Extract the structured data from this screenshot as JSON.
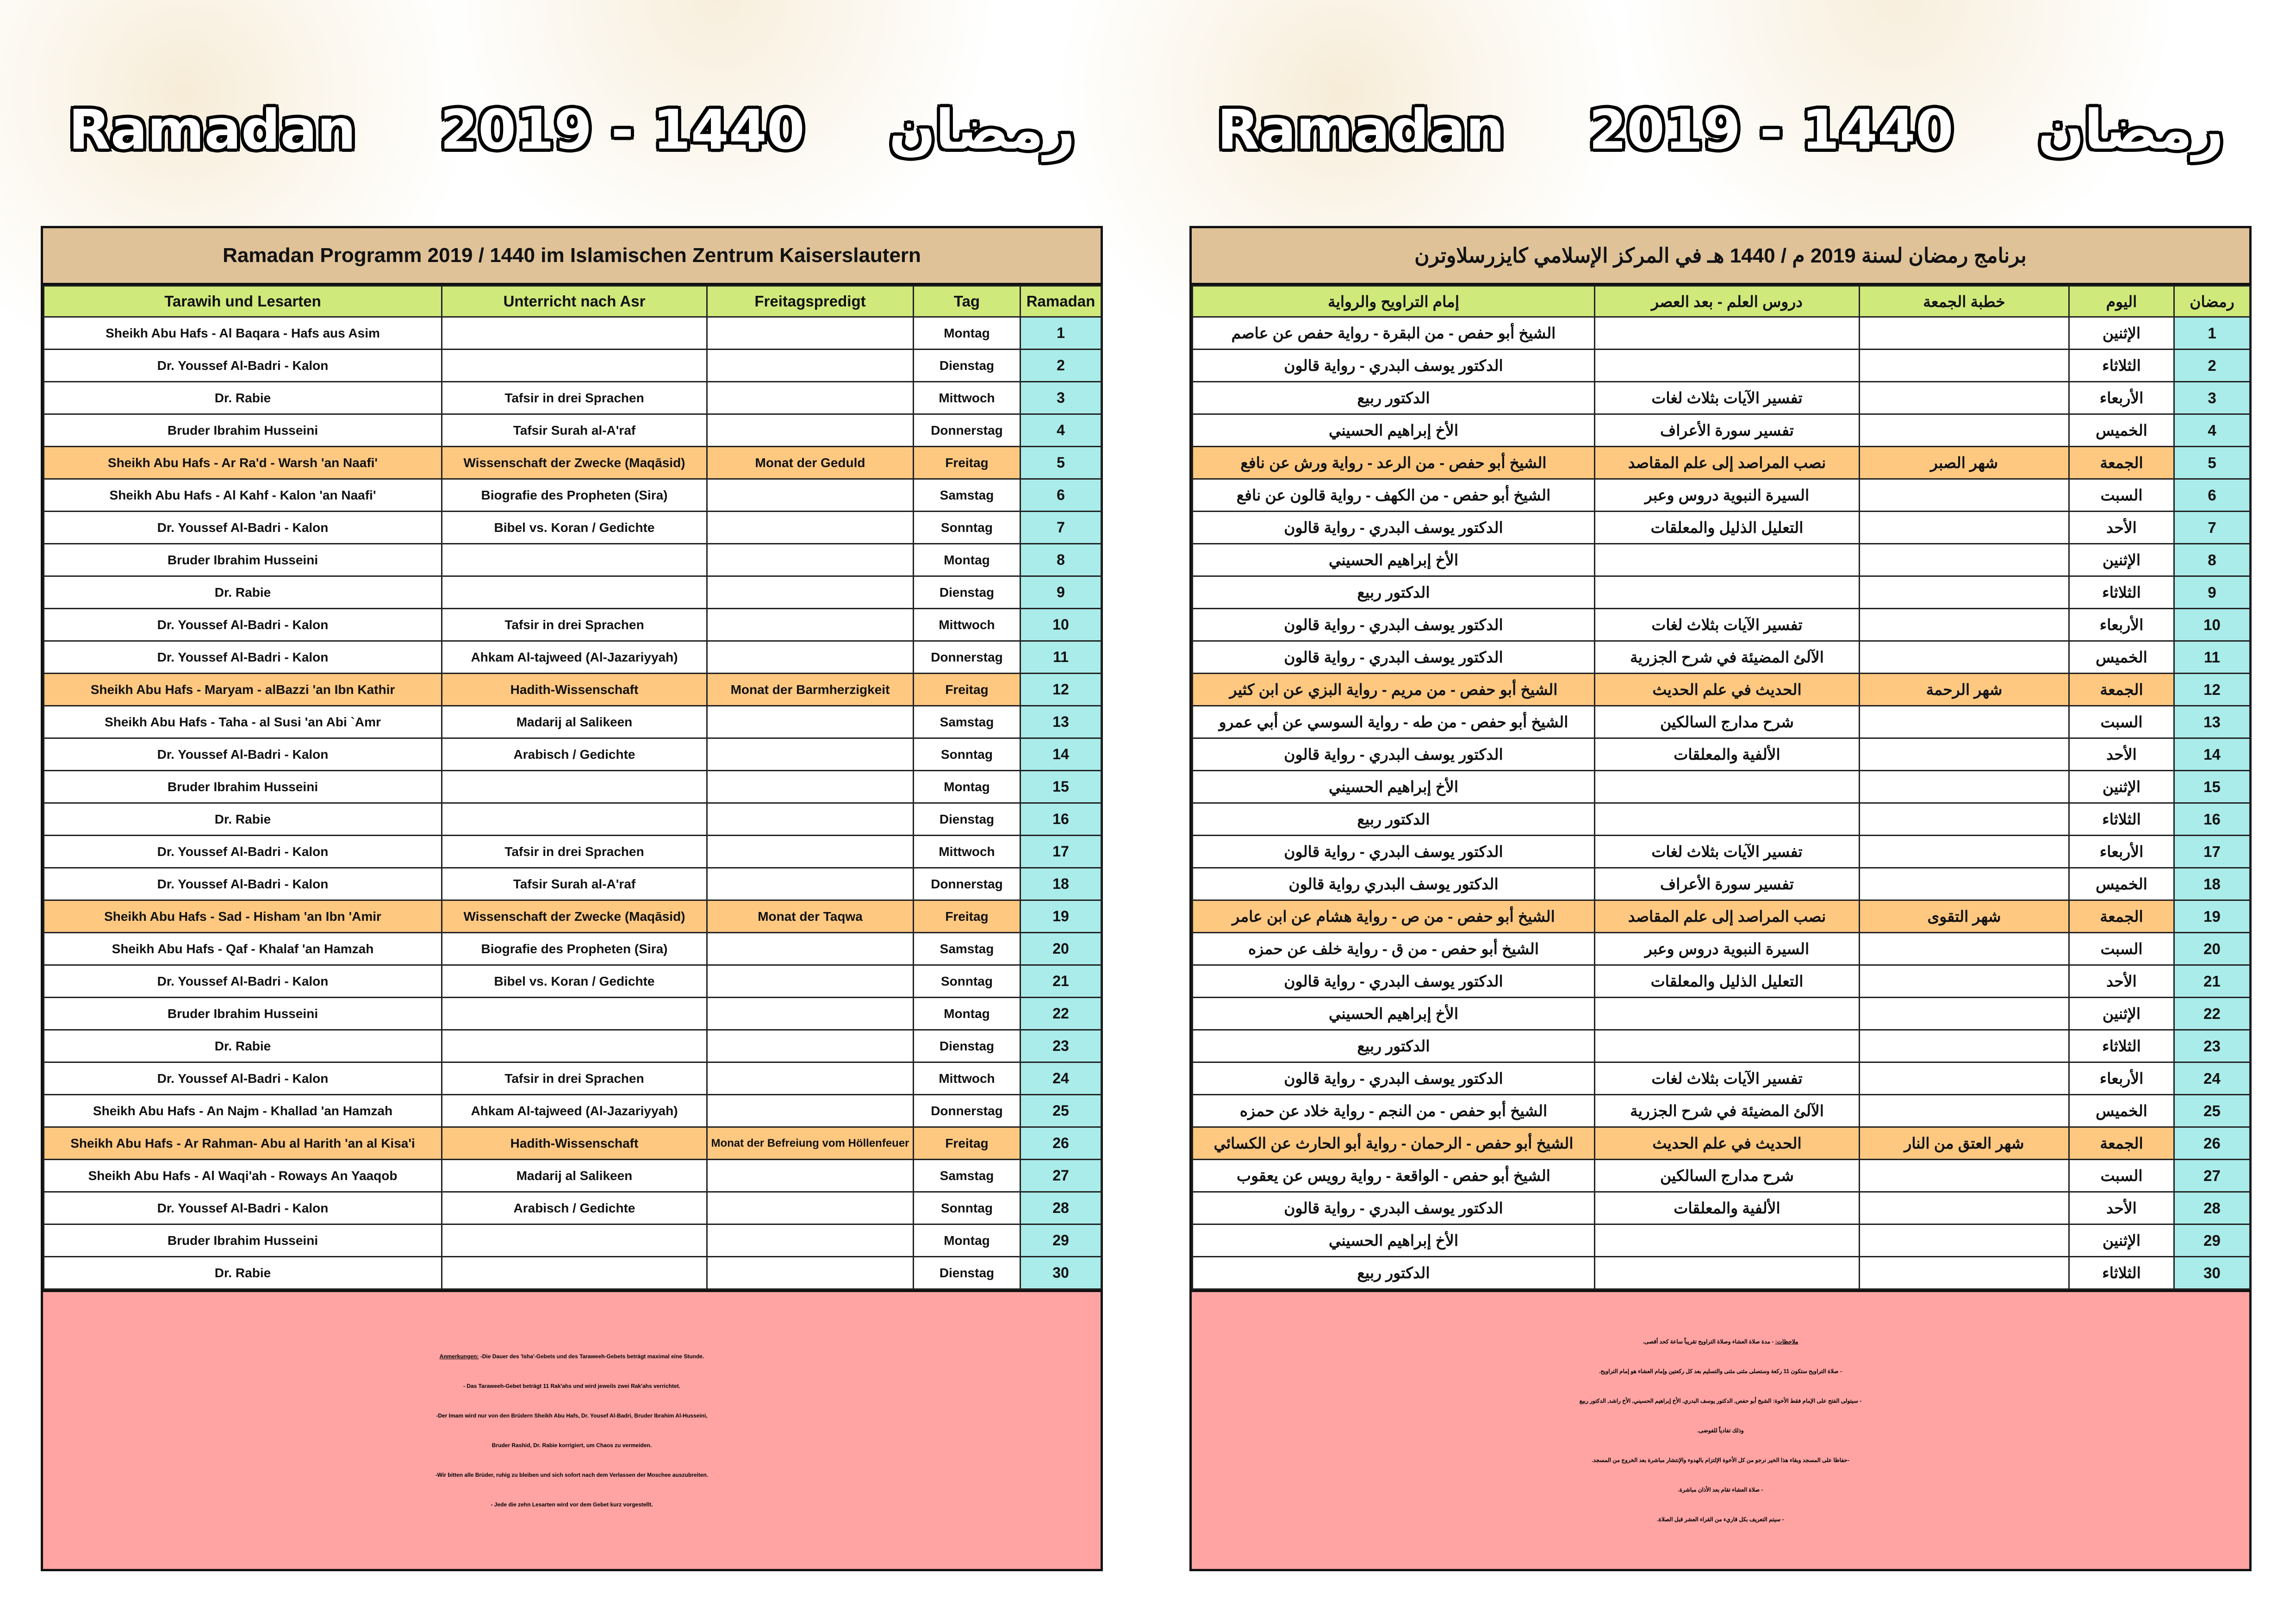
{
  "banner": {
    "latin": "Ramadan",
    "years": "2019 - 1440",
    "arabic": "رمضان"
  },
  "colors": {
    "title_band": "#dfc298",
    "header": "#d0e97b",
    "friday_row": "#ffc880",
    "ramadan_column": "#a9ecea",
    "notes": "#ffa3a3"
  },
  "german": {
    "title": "Ramadan Programm 2019 / 1440 im Islamischen Zentrum Kaiserslautern",
    "headers": [
      "Tarawih und Lesarten",
      "Unterricht nach Asr",
      "Freitagspredigt",
      "Tag",
      "Ramadan"
    ],
    "rows": [
      [
        "Sheikh Abu Hafs - Al Baqara - Hafs aus Asim",
        "",
        "",
        "Montag",
        "1"
      ],
      [
        "Dr. Youssef Al-Badri - Kalon",
        "",
        "",
        "Dienstag",
        "2"
      ],
      [
        "Dr. Rabie",
        "Tafsir in drei Sprachen",
        "",
        "Mittwoch",
        "3"
      ],
      [
        "Bruder Ibrahim Husseini",
        "Tafsir Surah al-A'raf",
        "",
        "Donnerstag",
        "4"
      ],
      [
        "Sheikh Abu Hafs - Ar Ra'd - Warsh 'an Naafi'",
        "Wissenschaft der Zwecke (Maqāsid)",
        "Monat der Geduld",
        "Freitag",
        "5"
      ],
      [
        "Sheikh Abu Hafs - Al Kahf - Kalon 'an Naafi'",
        "Biografie des Propheten (Sira)",
        "",
        "Samstag",
        "6"
      ],
      [
        "Dr. Youssef Al-Badri - Kalon",
        "Bibel vs. Koran /  Gedichte",
        "",
        "Sonntag",
        "7"
      ],
      [
        "Bruder Ibrahim Husseini",
        "",
        "",
        "Montag",
        "8"
      ],
      [
        "Dr. Rabie",
        "",
        "",
        "Dienstag",
        "9"
      ],
      [
        "Dr. Youssef Al-Badri - Kalon",
        "Tafsir in drei Sprachen",
        "",
        "Mittwoch",
        "10"
      ],
      [
        "Dr. Youssef Al-Badri - Kalon",
        "Ahkam Al-tajweed (Al-Jazariyyah)",
        "",
        "Donnerstag",
        "11"
      ],
      [
        "Sheikh Abu Hafs - Maryam - alBazzi 'an Ibn Kathir",
        "Hadith-Wissenschaft",
        "Monat der Barmherzigkeit",
        "Freitag",
        "12"
      ],
      [
        "Sheikh Abu Hafs - Taha - al Susi 'an Abi `Amr",
        "Madarij al Salikeen",
        "",
        "Samstag",
        "13"
      ],
      [
        "Dr. Youssef Al-Badri - Kalon",
        "Arabisch / Gedichte",
        "",
        "Sonntag",
        "14"
      ],
      [
        "Bruder Ibrahim Husseini",
        "",
        "",
        "Montag",
        "15"
      ],
      [
        "Dr. Rabie",
        "",
        "",
        "Dienstag",
        "16"
      ],
      [
        "Dr. Youssef Al-Badri - Kalon",
        "Tafsir in drei Sprachen",
        "",
        "Mittwoch",
        "17"
      ],
      [
        "Dr. Youssef Al-Badri - Kalon",
        "Tafsir Surah al-A'raf",
        "",
        "Donnerstag",
        "18"
      ],
      [
        "Sheikh Abu Hafs - Sad - Hisham 'an Ibn 'Amir",
        "Wissenschaft der Zwecke (Maqāsid)",
        "Monat der Taqwa",
        "Freitag",
        "19"
      ],
      [
        "Sheikh Abu Hafs - Qaf - Khalaf 'an Hamzah",
        "Biografie des Propheten (Sira)",
        "",
        "Samstag",
        "20"
      ],
      [
        "Dr. Youssef Al-Badri - Kalon",
        "Bibel vs. Koran /  Gedichte",
        "",
        "Sonntag",
        "21"
      ],
      [
        "Bruder Ibrahim Husseini",
        "",
        "",
        "Montag",
        "22"
      ],
      [
        "Dr. Rabie",
        "",
        "",
        "Dienstag",
        "23"
      ],
      [
        "Dr. Youssef Al-Badri - Kalon",
        "Tafsir in drei Sprachen",
        "",
        "Mittwoch",
        "24"
      ],
      [
        "Sheikh Abu Hafs - An Najm - Khallad 'an Hamzah",
        "Ahkam Al-tajweed (Al-Jazariyyah)",
        "",
        "Donnerstag",
        "25"
      ],
      [
        "Sheikh Abu Hafs - Ar Rahman- Abu al Harith 'an al Kisa'i",
        "Hadith-Wissenschaft",
        "Monat der Befreiung vom Höllenfeuer",
        "Freitag",
        "26"
      ],
      [
        "Sheikh Abu Hafs - Al Waqi'ah - Roways An Yaaqob",
        "Madarij al Salikeen",
        "",
        "Samstag",
        "27"
      ],
      [
        "Dr. Youssef Al-Badri - Kalon",
        "Arabisch / Gedichte",
        "",
        "Sonntag",
        "28"
      ],
      [
        "Bruder Ibrahim Husseini",
        "",
        "",
        "Montag",
        "29"
      ],
      [
        "Dr. Rabie",
        "",
        "",
        "Dienstag",
        "30"
      ]
    ],
    "notes_label": "Anmerkungen:",
    "notes": [
      " -Die Dauer des 'Isha'-Gebets und des Taraweeh-Gebets beträgt maximal eine Stunde.",
      "- Das Taraweeh-Gebet beträgt 11 Rak'ahs und wird jeweils zwei Rak'ahs verrichtet.",
      "-Der Imam wird nur von den Brüdern Sheikh Abu Hafs, Dr. Yousef Al-Badri, Bruder Ibrahim Al-Husseini,",
      "Bruder Rashid, Dr. Rabie korrigiert, um Chaos zu vermeiden.",
      "-Wir bitten alle Brüder, ruhig zu bleiben und sich sofort nach dem Verlassen der Moschee auszubreiten.",
      "- Jede die zehn Lesarten wird vor dem Gebet kurz vorgestellt."
    ]
  },
  "arabic": {
    "title": "برنامج رمضان لسنة 2019 م / 1440 هـ في المركز الإسلامي كايزرسلاوترن",
    "headers": [
      "رمضان",
      "اليوم",
      "خطبة الجمعة",
      "دروس العلم - بعد العصر",
      "إمام التراويح والرواية"
    ],
    "rows": [
      [
        "1",
        "الإثنين",
        "",
        "",
        "الشيخ أبو حفص - من البقرة - رواية حفص عن عاصم"
      ],
      [
        "2",
        "الثلاثاء",
        "",
        "",
        "الدكتور يوسف البدري - رواية قالون"
      ],
      [
        "3",
        "الأربعاء",
        "",
        "تفسير الآيات بثلاث لغات",
        "الدكتور ربيع"
      ],
      [
        "4",
        "الخميس",
        "",
        "تفسير سورة الأعراف",
        "الأخ إبراهيم الحسيني"
      ],
      [
        "5",
        "الجمعة",
        "شهر الصبر",
        "نصب المراصد إلى علم المقاصد",
        "الشيخ أبو حفص - من الرعد - رواية ورش عن نافع"
      ],
      [
        "6",
        "السبت",
        "",
        "السيرة النبوية دروس وعبر",
        "الشيخ أبو حفص - من الكهف - رواية قالون عن نافع"
      ],
      [
        "7",
        "الأحد",
        "",
        "التعليل الذليل والمعلقات",
        "الدكتور يوسف البدري - رواية قالون"
      ],
      [
        "8",
        "الإثنين",
        "",
        "",
        "الأخ إبراهيم الحسيني"
      ],
      [
        "9",
        "الثلاثاء",
        "",
        "",
        "الدكتور ربيع"
      ],
      [
        "10",
        "الأربعاء",
        "",
        "تفسير الآيات بثلاث لغات",
        "الدكتور يوسف البدري - رواية قالون"
      ],
      [
        "11",
        "الخميس",
        "",
        "الآلئ المضيئة في شرح الجزرية",
        "الدكتور يوسف البدري - رواية قالون"
      ],
      [
        "12",
        "الجمعة",
        "شهر الرحمة",
        "الحديث في علم الحديث",
        "الشيخ أبو حفص - من مريم - رواية البزي عن ابن كثير"
      ],
      [
        "13",
        "السبت",
        "",
        "شرح مدارج السالكين",
        "الشيخ أبو حفص - من طه - رواية السوسي  عن أبي عمرو"
      ],
      [
        "14",
        "الأحد",
        "",
        "الألفية  والمعلقات",
        "الدكتور يوسف البدري - رواية قالون"
      ],
      [
        "15",
        "الإثنين",
        "",
        "",
        "الأخ إبراهيم الحسيني"
      ],
      [
        "16",
        "الثلاثاء",
        "",
        "",
        "الدكتور ربيع"
      ],
      [
        "17",
        "الأربعاء",
        "",
        "تفسير الآيات بثلاث لغات",
        "الدكتور يوسف البدري - رواية قالون"
      ],
      [
        "18",
        "الخميس",
        "",
        "تفسير سورة الأعراف",
        "الدكتور يوسف البدري رواية قالون"
      ],
      [
        "19",
        "الجمعة",
        "شهر التقوى",
        "نصب المراصد إلى علم المقاصد",
        "الشيخ أبو حفص - من ص - رواية هشام عن ابن عامر"
      ],
      [
        "20",
        "السبت",
        "",
        "السيرة النبوية دروس وعبر",
        "الشيخ أبو حفص - من ق - رواية خلف  عن حمزه"
      ],
      [
        "21",
        "الأحد",
        "",
        "التعليل الذليل والمعلقات",
        "الدكتور يوسف البدري - رواية قالون"
      ],
      [
        "22",
        "الإثنين",
        "",
        "",
        "الأخ إبراهيم الحسيني"
      ],
      [
        "23",
        "الثلاثاء",
        "",
        "",
        "الدكتور ربيع"
      ],
      [
        "24",
        "الأربعاء",
        "",
        "تفسير الآيات بثلاث لغات",
        "الدكتور يوسف البدري - رواية قالون"
      ],
      [
        "25",
        "الخميس",
        "",
        "الآلئ المضيئة في شرح الجزرية",
        "الشيخ أبو حفص - من النجم - رواية خلاد عن حمزه"
      ],
      [
        "26",
        "الجمعة",
        "شهر  العتق من النار",
        "الحديث في علم  الحديث",
        "الشيخ أبو حفص - الرحمان - رواية أبو الحارث عن الكسائي"
      ],
      [
        "27",
        "السبت",
        "",
        "شرح مدارج السالكين",
        "الشيخ أبو حفص - الواقعة - رواية رويس عن يعقوب"
      ],
      [
        "28",
        "الأحد",
        "",
        "الألفية  والمعلقات",
        "الدكتور يوسف البدري - رواية قالون"
      ],
      [
        "29",
        "الإثنين",
        "",
        "",
        "الأخ إبراهيم الحسيني"
      ],
      [
        "30",
        "الثلاثاء",
        "",
        "",
        "الدكتور ربيع"
      ]
    ],
    "notes_label": "ملاحظات:",
    "notes": [
      " - مدة صلاة العشاء وصلاة التراويح تقريباً ساعة كحد أقصى.",
      "- صلاة التراويح ستكون 11 ركعة وستصلى مثنى مثنى والتسليم بعد كل ركعتين وإمام العشاء هو إمام التراويح.",
      "- سيتولى الفتح على الإمام فقط الأخوة: الشيخ أبو حفص, الدكتور يوسف البدري, الأخ إبراهيم الحسيني, الأخ راشد, الدكتور ربيع",
      "وذلك تفادياً للفوضى.",
      "-حفاظا على المسجد وبقاء هذا الخير نرجو من كل الأخوة الإلتزام بالهدوء والإنتشار مباشرة بعد الخروج من المسجد.",
      "- صلاة العشاء تقام بعد الأذان مباشرة.",
      "- سيتم التعريف بكل قاريء من القراء العشر قبل الصلاة."
    ]
  }
}
